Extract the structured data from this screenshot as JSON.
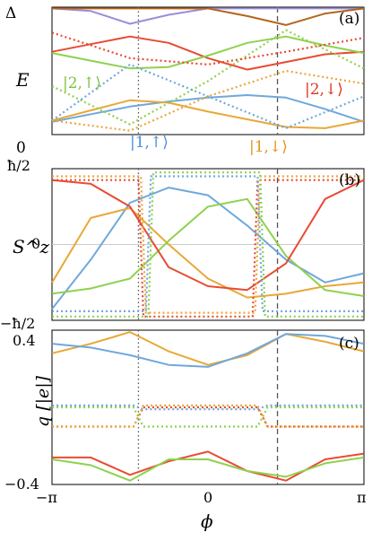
{
  "chart_data": [
    {
      "panel": "(a)",
      "type": "line",
      "ylabel": "E",
      "yticks": [
        "Δ",
        "0"
      ],
      "ylim": [
        0,
        1
      ],
      "xlim": [
        -3.14159,
        3.14159
      ],
      "annotations": [
        "|2,↑⟩",
        "|2,↓⟩",
        "|1,↑⟩",
        "|1,↓⟩"
      ],
      "series": [
        {
          "color": "#9b8ed8",
          "style": "solid",
          "x": [
            -3.14,
            -2.36,
            -1.57,
            -0.79,
            0,
            0.79,
            1.57,
            2.36,
            3.14
          ],
          "y": [
            0.99,
            0.97,
            0.87,
            0.94,
            0.99,
            0.99,
            0.99,
            0.99,
            0.99
          ]
        },
        {
          "color": "#b5651d",
          "style": "solid",
          "x": [
            -3.14,
            -2.36,
            -1.57,
            -0.79,
            0,
            0.79,
            1.57,
            2.36,
            3.14
          ],
          "y": [
            0.99,
            0.99,
            0.99,
            0.99,
            0.99,
            0.93,
            0.86,
            0.95,
            0.99
          ]
        },
        {
          "color": "#e84b32",
          "style": "solid",
          "x": [
            -3.14,
            -2.36,
            -1.57,
            -0.79,
            0,
            0.79,
            1.57,
            2.36,
            3.14
          ],
          "y": [
            0.65,
            0.71,
            0.77,
            0.72,
            0.6,
            0.51,
            0.57,
            0.63,
            0.65
          ]
        },
        {
          "color": "#8fd14f",
          "style": "solid",
          "x": [
            -3.14,
            -2.36,
            -1.57,
            -0.79,
            0,
            0.79,
            1.57,
            2.36,
            3.14
          ],
          "y": [
            0.64,
            0.58,
            0.52,
            0.53,
            0.62,
            0.72,
            0.77,
            0.7,
            0.64
          ]
        },
        {
          "color": "#6fa8dc",
          "style": "solid",
          "x": [
            -3.14,
            -2.36,
            -1.57,
            -0.79,
            0,
            0.79,
            1.57,
            2.36,
            3.14
          ],
          "y": [
            0.1,
            0.16,
            0.22,
            0.26,
            0.29,
            0.31,
            0.29,
            0.2,
            0.1
          ]
        },
        {
          "color": "#e8a838",
          "style": "solid",
          "x": [
            -3.14,
            -2.36,
            -1.57,
            -0.79,
            0,
            0.79,
            1.57,
            2.36,
            3.14
          ],
          "y": [
            0.11,
            0.19,
            0.27,
            0.25,
            0.18,
            0.12,
            0.06,
            0.05,
            0.11
          ]
        },
        {
          "color": "#8fd14f",
          "style": "dotted",
          "x": [
            -3.14,
            -1.57,
            0,
            1.57,
            3.14
          ],
          "y": [
            0.38,
            0.08,
            0.42,
            0.82,
            0.52
          ]
        },
        {
          "color": "#e84b32",
          "style": "dotted",
          "x": [
            -3.14,
            -1.57,
            0,
            1.57,
            3.14
          ],
          "y": [
            0.8,
            0.6,
            0.55,
            0.65,
            0.76
          ]
        },
        {
          "color": "#6fa8dc",
          "style": "dotted",
          "x": [
            -3.14,
            -1.57,
            0,
            1.57,
            3.14
          ],
          "y": [
            0.11,
            0.55,
            0.3,
            0.05,
            0.3
          ]
        },
        {
          "color": "#e8a838",
          "style": "dotted",
          "x": [
            -3.14,
            -1.57,
            0,
            1.57,
            3.14
          ],
          "y": [
            0.11,
            0.03,
            0.3,
            0.5,
            0.4
          ]
        }
      ]
    },
    {
      "panel": "(b)",
      "type": "line",
      "ylabel": "S^z",
      "yticks": [
        "ħ/2",
        "0",
        "−ħ/2"
      ],
      "ylim": [
        -1,
        1
      ],
      "xlim": [
        -3.14159,
        3.14159
      ],
      "series": [
        {
          "color": "#6fa8dc",
          "style": "solid",
          "x": [
            -3.14,
            -2.36,
            -1.57,
            -0.79,
            0,
            0.79,
            1.57,
            2.36,
            3.14
          ],
          "y": [
            -0.85,
            -0.2,
            0.55,
            0.75,
            0.65,
            0.25,
            -0.2,
            -0.5,
            -0.38
          ]
        },
        {
          "color": "#e8a838",
          "style": "solid",
          "x": [
            -3.14,
            -2.36,
            -1.57,
            -0.79,
            0,
            0.79,
            1.57,
            2.36,
            3.14
          ],
          "y": [
            -0.5,
            0.35,
            0.48,
            0.0,
            -0.45,
            -0.7,
            -0.65,
            -0.55,
            -0.5
          ]
        },
        {
          "color": "#8fd14f",
          "style": "solid",
          "x": [
            -3.14,
            -2.36,
            -1.57,
            -0.79,
            0,
            0.79,
            1.57,
            2.36,
            3.14
          ],
          "y": [
            -0.65,
            -0.58,
            -0.45,
            0.05,
            0.5,
            0.6,
            -0.15,
            -0.6,
            -0.68
          ]
        },
        {
          "color": "#e84b32",
          "style": "solid",
          "x": [
            -3.14,
            -2.36,
            -1.57,
            -0.79,
            0,
            0.79,
            1.57,
            2.36,
            3.14
          ],
          "y": [
            0.85,
            0.8,
            0.5,
            -0.3,
            -0.55,
            -0.6,
            -0.25,
            0.6,
            0.85
          ]
        },
        {
          "color": "#e84b32",
          "style": "dotted",
          "x": [
            -3.14,
            -1.4,
            -1.3,
            0.9,
            1.0,
            3.14
          ],
          "y": [
            0.85,
            0.85,
            -0.95,
            -0.95,
            0.85,
            0.85
          ]
        },
        {
          "color": "#e8a838",
          "style": "dotted",
          "x": [
            -3.14,
            -1.35,
            -1.25,
            0.95,
            1.05,
            3.14
          ],
          "y": [
            0.9,
            0.9,
            -0.9,
            -0.9,
            0.9,
            0.9
          ]
        },
        {
          "color": "#8fd14f",
          "style": "dotted",
          "x": [
            -3.14,
            -1.2,
            -1.1,
            1.05,
            1.15,
            3.14
          ],
          "y": [
            -0.95,
            -0.95,
            0.95,
            0.95,
            -0.95,
            -0.95
          ]
        },
        {
          "color": "#6fa8dc",
          "style": "dotted",
          "x": [
            -3.14,
            -1.25,
            -1.15,
            1.0,
            1.1,
            3.14
          ],
          "y": [
            -0.88,
            -0.88,
            0.9,
            0.9,
            -0.88,
            -0.88
          ]
        }
      ]
    },
    {
      "panel": "(c)",
      "type": "line",
      "ylabel": "q [|e|]",
      "yticks": [
        "0.4",
        "−0.4"
      ],
      "ylim": [
        -0.4,
        0.4
      ],
      "xlabel": "ϕ",
      "xticks": [
        "−π",
        "0",
        "π"
      ],
      "xlim": [
        -3.14159,
        3.14159
      ],
      "series": [
        {
          "color": "#e8a838",
          "style": "solid",
          "x": [
            -3.14,
            -2.36,
            -1.57,
            -0.79,
            0,
            0.79,
            1.57,
            2.36,
            3.14
          ],
          "y": [
            0.28,
            0.33,
            0.39,
            0.29,
            0.22,
            0.27,
            0.38,
            0.34,
            0.29
          ]
        },
        {
          "color": "#6fa8dc",
          "style": "solid",
          "x": [
            -3.14,
            -2.36,
            -1.57,
            -0.79,
            0,
            0.79,
            1.57,
            2.36,
            3.14
          ],
          "y": [
            0.33,
            0.31,
            0.27,
            0.22,
            0.21,
            0.28,
            0.38,
            0.37,
            0.33
          ]
        },
        {
          "color": "#e84b32",
          "style": "solid",
          "x": [
            -3.14,
            -2.36,
            -1.57,
            -0.79,
            0,
            0.79,
            1.57,
            2.36,
            3.14
          ],
          "y": [
            -0.26,
            -0.26,
            -0.35,
            -0.28,
            -0.23,
            -0.33,
            -0.38,
            -0.27,
            -0.24
          ]
        },
        {
          "color": "#8fd14f",
          "style": "solid",
          "x": [
            -3.14,
            -2.36,
            -1.57,
            -0.79,
            0,
            0.79,
            1.57,
            2.36,
            3.14
          ],
          "y": [
            -0.27,
            -0.3,
            -0.38,
            -0.27,
            -0.27,
            -0.33,
            -0.36,
            -0.29,
            -0.26
          ]
        },
        {
          "color": "#8fd14f",
          "style": "dotted",
          "x": [
            -3.14,
            -1.5,
            -1.3,
            1.0,
            1.2,
            3.14
          ],
          "y": [
            0.0,
            0.0,
            -0.1,
            -0.1,
            0.0,
            0.0
          ]
        },
        {
          "color": "#e84b32",
          "style": "dotted",
          "x": [
            -3.14,
            -1.5,
            -1.3,
            1.0,
            1.2,
            3.14
          ],
          "y": [
            -0.1,
            -0.1,
            0.0,
            0.0,
            -0.1,
            -0.1
          ]
        },
        {
          "color": "#6fa8dc",
          "style": "dotted",
          "x": [
            -3.14,
            -1.5,
            -1.3,
            1.0,
            1.2,
            3.14
          ],
          "y": [
            0.01,
            0.01,
            -0.01,
            -0.01,
            0.01,
            0.01
          ]
        },
        {
          "color": "#e8a838",
          "style": "dotted",
          "x": [
            -3.14,
            -1.5,
            -1.3,
            1.0,
            1.2,
            3.14
          ],
          "y": [
            -0.1,
            -0.1,
            0.01,
            0.01,
            -0.1,
            -0.1
          ]
        }
      ]
    }
  ]
}
